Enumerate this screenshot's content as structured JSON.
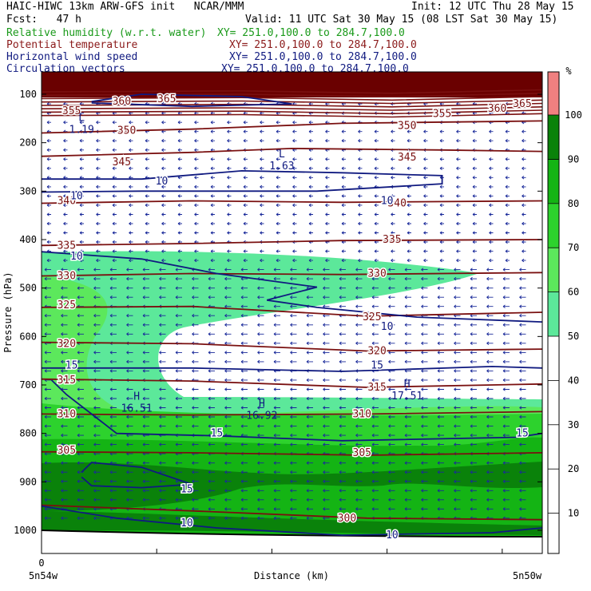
{
  "header": {
    "title_left": "HAIC-HIWC 13km ARW-GFS init   NCAR/MMM",
    "init": "Init: 12 UTC Thu 28 May 15",
    "fcst": "Fcst:   47 h",
    "valid": "Valid: 11 UTC Sat 30 May 15 (08 LST Sat 30 May 15)"
  },
  "fields": [
    {
      "name": "Relative humidity (w.r.t. water)",
      "xy": "XY= 251.0,100.0 to 284.7,100.0"
    },
    {
      "name": "Potential temperature",
      "xy": "XY= 251.0,100.0 to 284.7,100.0"
    },
    {
      "name": "Horizontal wind speed",
      "xy": "XY= 251.0,100.0 to 284.7,100.0"
    },
    {
      "name": "Circulation vectors",
      "xy": "XY= 251.0,100.0 to 284.7,100.0"
    }
  ],
  "colors": {
    "rh_50_60": "#5ce89a",
    "rh_60_70": "#5ce85c",
    "rh_70_80": "#2dd22d",
    "rh_80_90": "#14b414",
    "rh_90_100": "#0a820a",
    "rh_100": "#f08080",
    "theta": "#7a1010",
    "wind": "#101a80",
    "vectors": "#1a2a9a",
    "top_band": "#6a0000"
  },
  "chart_data": {
    "type": "cross-section",
    "xlabel": "Distance (km)",
    "ylabel": "Pressure (hPa)",
    "x_start_label": "0",
    "x_left_label": "5n54w",
    "x_right_label": "5n50w",
    "y_ticks": [
      "100",
      "200",
      "300",
      "400",
      "500",
      "600",
      "700",
      "800",
      "900",
      "1000"
    ],
    "colorbar": {
      "unit": "%",
      "ticks": [
        "100",
        "90",
        "80",
        "70",
        "60",
        "50",
        "40",
        "30",
        "20",
        "10"
      ]
    },
    "theta_labels": [
      "355",
      "360",
      "365",
      "350",
      "345",
      "340",
      "335",
      "330",
      "325",
      "320",
      "315",
      "310",
      "305",
      "300"
    ],
    "theta_label_list": [
      {
        "text": "355",
        "p": 135,
        "x": 0.06
      },
      {
        "text": "360",
        "p": 115,
        "x": 0.16
      },
      {
        "text": "365",
        "p": 110,
        "x": 0.25
      },
      {
        "text": "350",
        "p": 175,
        "x": 0.17
      },
      {
        "text": "355",
        "p": 140,
        "x": 0.8
      },
      {
        "text": "360",
        "p": 130,
        "x": 0.91
      },
      {
        "text": "365",
        "p": 120,
        "x": 0.96
      },
      {
        "text": "350",
        "p": 165,
        "x": 0.73
      },
      {
        "text": "345",
        "p": 240,
        "x": 0.16
      },
      {
        "text": "345",
        "p": 230,
        "x": 0.73
      },
      {
        "text": "340",
        "p": 320,
        "x": 0.05
      },
      {
        "text": "340",
        "p": 325,
        "x": 0.71
      },
      {
        "text": "335",
        "p": 412,
        "x": 0.05
      },
      {
        "text": "335",
        "p": 400,
        "x": 0.7
      },
      {
        "text": "330",
        "p": 475,
        "x": 0.05
      },
      {
        "text": "330",
        "p": 470,
        "x": 0.67
      },
      {
        "text": "325",
        "p": 535,
        "x": 0.05
      },
      {
        "text": "325",
        "p": 560,
        "x": 0.66
      },
      {
        "text": "320",
        "p": 615,
        "x": 0.05
      },
      {
        "text": "320",
        "p": 630,
        "x": 0.67
      },
      {
        "text": "315",
        "p": 690,
        "x": 0.05
      },
      {
        "text": "315",
        "p": 705,
        "x": 0.67
      },
      {
        "text": "310",
        "p": 760,
        "x": 0.05
      },
      {
        "text": "310",
        "p": 760,
        "x": 0.64
      },
      {
        "text": "305",
        "p": 835,
        "x": 0.05
      },
      {
        "text": "305",
        "p": 840,
        "x": 0.64
      },
      {
        "text": "300",
        "p": 975,
        "x": 0.61
      }
    ],
    "wind_labels": [
      {
        "text": "10",
        "p": 280,
        "x": 0.24
      },
      {
        "text": "10",
        "p": 310,
        "x": 0.07
      },
      {
        "text": "10",
        "p": 320,
        "x": 0.69
      },
      {
        "text": "10",
        "p": 435,
        "x": 0.07
      },
      {
        "text": "10",
        "p": 580,
        "x": 0.69
      },
      {
        "text": "15",
        "p": 660,
        "x": 0.06
      },
      {
        "text": "15",
        "p": 660,
        "x": 0.67
      },
      {
        "text": "15",
        "p": 800,
        "x": 0.35
      },
      {
        "text": "15",
        "p": 800,
        "x": 0.96
      },
      {
        "text": "15",
        "p": 915,
        "x": 0.29
      },
      {
        "text": "10",
        "p": 985,
        "x": 0.29
      },
      {
        "text": "10",
        "p": 1010,
        "x": 0.7
      }
    ],
    "extrema": [
      {
        "symbol": "L",
        "value": "1.19",
        "p": 165,
        "x": 0.08
      },
      {
        "symbol": "L",
        "value": "1.63",
        "p": 240,
        "x": 0.48
      },
      {
        "symbol": "H",
        "value": "16.51",
        "p": 740,
        "x": 0.19
      },
      {
        "symbol": "H",
        "value": "16.92",
        "p": 755,
        "x": 0.44
      },
      {
        "symbol": "H",
        "value": "17.51",
        "p": 715,
        "x": 0.73
      }
    ]
  }
}
